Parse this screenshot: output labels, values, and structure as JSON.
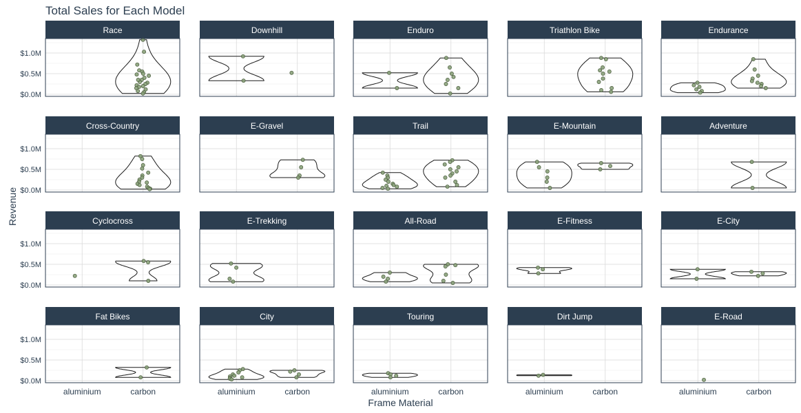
{
  "chart_data": {
    "type": "violin",
    "title": "Total Sales for Each Model",
    "xlabel": "Frame Material",
    "ylabel": "Revenue",
    "categories": [
      "aluminium",
      "carbon"
    ],
    "y_ticks": [
      0,
      0.5,
      1.0
    ],
    "y_tick_labels": [
      "$0.0M",
      "$0.5M",
      "$1.0M"
    ],
    "ylim": [
      -0.05,
      1.35
    ],
    "unit": "$M",
    "grid": true,
    "colors": {
      "strip_bg": "#2c3e50",
      "strip_text": "#ffffff",
      "point_fill": "#8aa17a",
      "point_stroke": "#4a5c3d",
      "grid": "#d9d9d9",
      "text": "#2c3e50"
    },
    "panels": [
      {
        "name": "Race",
        "aluminium": [],
        "carbon": [
          1.32,
          1.03,
          0.72,
          0.58,
          0.55,
          0.5,
          0.48,
          0.45,
          0.4,
          0.35,
          0.3,
          0.28,
          0.25,
          0.22,
          0.2,
          0.18,
          0.12,
          0.08,
          0.05,
          0.02,
          0.35,
          0.15
        ]
      },
      {
        "name": "Downhill",
        "aluminium": [
          0.92,
          0.33
        ],
        "carbon": [
          0.52
        ]
      },
      {
        "name": "Enduro",
        "aluminium": [
          0.52,
          0.15
        ],
        "carbon": [
          0.88,
          0.65,
          0.5,
          0.42,
          0.35,
          0.25,
          0.15,
          0.02
        ]
      },
      {
        "name": "Triathlon Bike",
        "aluminium": [],
        "carbon": [
          0.88,
          0.85,
          0.65,
          0.58,
          0.55,
          0.5,
          0.38,
          0.3,
          0.15,
          0.1,
          0.06
        ]
      },
      {
        "name": "Endurance",
        "aluminium": [
          0.28,
          0.22,
          0.18,
          0.12,
          0.08,
          0.04
        ],
        "carbon": [
          0.85,
          0.6,
          0.45,
          0.38,
          0.32,
          0.28,
          0.25,
          0.2,
          0.15
        ]
      },
      {
        "name": "Cross-Country",
        "aluminium": [],
        "carbon": [
          0.82,
          0.75,
          0.6,
          0.52,
          0.42,
          0.35,
          0.3,
          0.25,
          0.2,
          0.18,
          0.15,
          0.12,
          0.08,
          0.05,
          0.03,
          0.02
        ]
      },
      {
        "name": "E-Gravel",
        "aluminium": [],
        "carbon": [
          0.73,
          0.55,
          0.35,
          0.3
        ]
      },
      {
        "name": "Trail",
        "aluminium": [
          0.42,
          0.35,
          0.3,
          0.25,
          0.2,
          0.15,
          0.12,
          0.1,
          0.08,
          0.05,
          0.03
        ],
        "carbon": [
          0.72,
          0.68,
          0.62,
          0.55,
          0.5,
          0.45,
          0.4,
          0.35,
          0.3,
          0.2,
          0.12,
          0.08
        ]
      },
      {
        "name": "E-Mountain",
        "aluminium": [
          0.68,
          0.55,
          0.45,
          0.3,
          0.2,
          0.05
        ],
        "carbon": [
          0.65,
          0.58,
          0.5
        ]
      },
      {
        "name": "Adventure",
        "aluminium": [],
        "carbon": [
          0.68,
          0.05
        ]
      },
      {
        "name": "Cyclocross",
        "aluminium": [
          0.22
        ],
        "carbon": [
          0.58,
          0.55,
          0.1
        ]
      },
      {
        "name": "E-Trekking",
        "aluminium": [
          0.52,
          0.42,
          0.15,
          0.08
        ],
        "carbon": []
      },
      {
        "name": "All-Road",
        "aluminium": [
          0.3,
          0.2,
          0.15,
          0.08
        ],
        "carbon": [
          0.5,
          0.48,
          0.45,
          0.25,
          0.1,
          0.05
        ]
      },
      {
        "name": "E-Fitness",
        "aluminium": [
          0.42,
          0.38,
          0.28
        ],
        "carbon": []
      },
      {
        "name": "E-City",
        "aluminium": [
          0.38,
          0.15
        ],
        "carbon": [
          0.32,
          0.28,
          0.22
        ]
      },
      {
        "name": "Fat Bikes",
        "aluminium": [],
        "carbon": [
          0.32,
          0.08
        ]
      },
      {
        "name": "City",
        "aluminium": [
          0.28,
          0.25,
          0.2,
          0.15,
          0.12,
          0.1,
          0.08,
          0.06,
          0.05,
          0.03
        ],
        "carbon": [
          0.25,
          0.22,
          0.15,
          0.08
        ]
      },
      {
        "name": "Touring",
        "aluminium": [
          0.18,
          0.15,
          0.12,
          0.08
        ],
        "carbon": []
      },
      {
        "name": "Dirt Jump",
        "aluminium": [
          0.14,
          0.12
        ],
        "carbon": []
      },
      {
        "name": "E-Road",
        "aluminium": [
          0.02
        ],
        "carbon": []
      }
    ]
  }
}
